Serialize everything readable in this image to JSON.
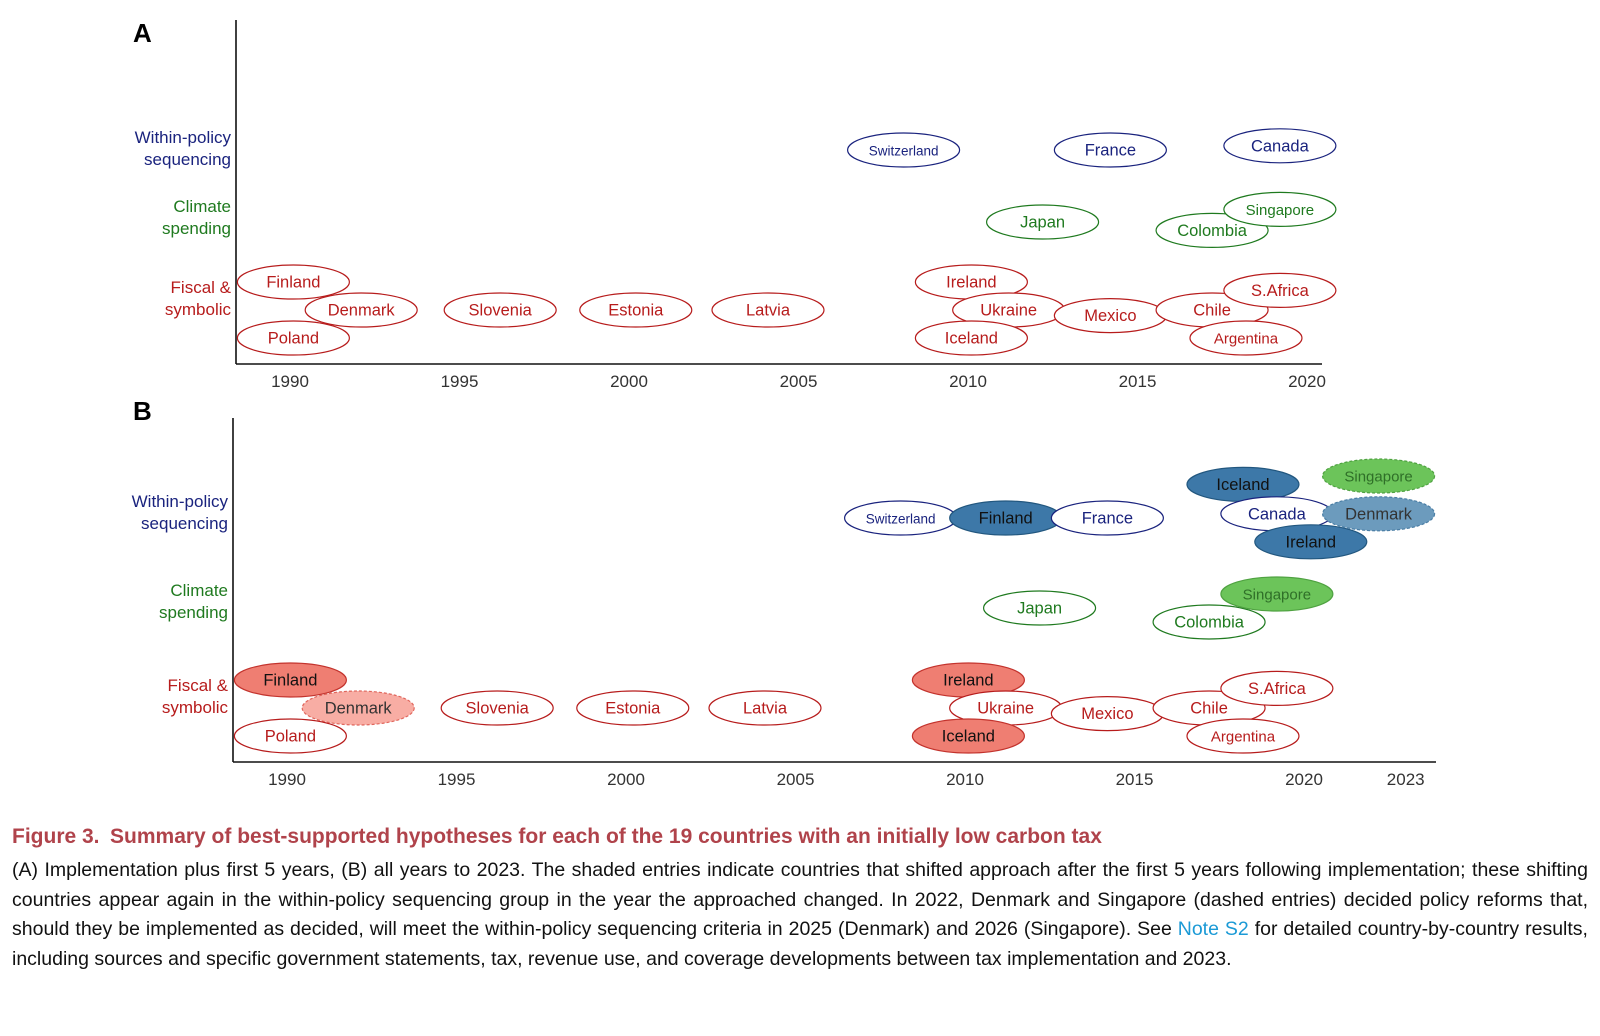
{
  "colors": {
    "sequencing": "#1a237e",
    "spending": "#1f7a1f",
    "fiscal": "#b71c1c",
    "caption_title": "#b0434b",
    "link": "#1b9ad6",
    "shade_blue": "#3d78a8",
    "shade_blue_dashed": "#6c9bbd",
    "shade_green": "#6cc45a",
    "shade_red": "#ef7e72",
    "shade_red_dashed": "#f8ada4"
  },
  "chart_data": [
    {
      "panel": "A",
      "type": "scatter",
      "title": "",
      "xlabel": "",
      "ylabel": "",
      "x_ticks": [
        "1990",
        "1995",
        "2000",
        "2005",
        "2010",
        "2015",
        "2020"
      ],
      "categories": [
        "Within-policy sequencing",
        "Climate spending",
        "Fiscal & symbolic"
      ],
      "category_lines": [
        [
          "Within-policy",
          "sequencing"
        ],
        [
          "Climate",
          "spending"
        ],
        [
          "Fiscal &",
          "symbolic"
        ]
      ],
      "points": [
        {
          "country": "Switzerland",
          "year": 2008.1,
          "group": "sequencing",
          "offset": 0,
          "style": "outline"
        },
        {
          "country": "France",
          "year": 2014.2,
          "group": "sequencing",
          "offset": 0,
          "style": "outline"
        },
        {
          "country": "Canada",
          "year": 2019.2,
          "group": "sequencing",
          "offset": 0.15,
          "style": "outline"
        },
        {
          "country": "Japan",
          "year": 2012.2,
          "group": "spending",
          "offset": 0,
          "style": "outline"
        },
        {
          "country": "Colombia",
          "year": 2017.2,
          "group": "spending",
          "offset": -0.3,
          "style": "outline"
        },
        {
          "country": "Singapore",
          "year": 2019.2,
          "group": "spending",
          "offset": 0.45,
          "style": "outline"
        },
        {
          "country": "Finland",
          "year": 1990.1,
          "group": "fiscal",
          "offset": 1,
          "style": "outline"
        },
        {
          "country": "Denmark",
          "year": 1992.1,
          "group": "fiscal",
          "offset": 0,
          "style": "outline"
        },
        {
          "country": "Poland",
          "year": 1990.1,
          "group": "fiscal",
          "offset": -1,
          "style": "outline"
        },
        {
          "country": "Slovenia",
          "year": 1996.2,
          "group": "fiscal",
          "offset": 0,
          "style": "outline"
        },
        {
          "country": "Estonia",
          "year": 2000.2,
          "group": "fiscal",
          "offset": 0,
          "style": "outline"
        },
        {
          "country": "Latvia",
          "year": 2004.1,
          "group": "fiscal",
          "offset": 0,
          "style": "outline"
        },
        {
          "country": "Ireland",
          "year": 2010.1,
          "group": "fiscal",
          "offset": 1,
          "style": "outline"
        },
        {
          "country": "Ukraine",
          "year": 2011.2,
          "group": "fiscal",
          "offset": 0,
          "style": "outline"
        },
        {
          "country": "Iceland",
          "year": 2010.1,
          "group": "fiscal",
          "offset": -1,
          "style": "outline"
        },
        {
          "country": "Mexico",
          "year": 2014.2,
          "group": "fiscal",
          "offset": -0.2,
          "style": "outline"
        },
        {
          "country": "Chile",
          "year": 2017.2,
          "group": "fiscal",
          "offset": 0,
          "style": "outline"
        },
        {
          "country": "S.Africa",
          "year": 2019.2,
          "group": "fiscal",
          "offset": 0.7,
          "style": "outline"
        },
        {
          "country": "Argentina",
          "year": 2018.2,
          "group": "fiscal",
          "offset": -1,
          "style": "outline"
        }
      ]
    },
    {
      "panel": "B",
      "type": "scatter",
      "title": "",
      "xlabel": "",
      "ylabel": "",
      "x_ticks": [
        "1990",
        "1995",
        "2000",
        "2005",
        "2010",
        "2015",
        "2020",
        "2023"
      ],
      "categories": [
        "Within-policy sequencing",
        "Climate spending",
        "Fiscal & symbolic"
      ],
      "category_lines": [
        [
          "Within-policy",
          "sequencing"
        ],
        [
          "Climate",
          "spending"
        ],
        [
          "Fiscal &",
          "symbolic"
        ]
      ],
      "points": [
        {
          "country": "Switzerland",
          "year": 2008.1,
          "group": "sequencing",
          "offset": 0,
          "style": "outline"
        },
        {
          "country": "Finland",
          "year": 2011.2,
          "group": "sequencing",
          "offset": 0,
          "style": "shaded"
        },
        {
          "country": "France",
          "year": 2014.2,
          "group": "sequencing",
          "offset": 0,
          "style": "outline"
        },
        {
          "country": "Iceland",
          "year": 2018.2,
          "group": "sequencing",
          "offset": 1.2,
          "style": "shaded"
        },
        {
          "country": "Canada",
          "year": 2019.2,
          "group": "sequencing",
          "offset": 0.15,
          "style": "outline"
        },
        {
          "country": "Ireland",
          "year": 2020.2,
          "group": "sequencing",
          "offset": -0.85,
          "style": "shaded"
        },
        {
          "country": "Singapore",
          "year": 2022.2,
          "group": "sequencing",
          "offset": 1.5,
          "style": "shaded-dashed",
          "shade": "green"
        },
        {
          "country": "Denmark",
          "year": 2022.2,
          "group": "sequencing",
          "offset": 0.15,
          "style": "shaded-dashed"
        },
        {
          "country": "Japan",
          "year": 2012.2,
          "group": "spending",
          "offset": 0,
          "style": "outline"
        },
        {
          "country": "Colombia",
          "year": 2017.2,
          "group": "spending",
          "offset": -0.5,
          "style": "outline"
        },
        {
          "country": "Singapore",
          "year": 2019.2,
          "group": "spending",
          "offset": 0.5,
          "style": "shaded"
        },
        {
          "country": "Finland",
          "year": 1990.1,
          "group": "fiscal",
          "offset": 1,
          "style": "shaded"
        },
        {
          "country": "Denmark",
          "year": 1992.1,
          "group": "fiscal",
          "offset": 0,
          "style": "shaded-dashed"
        },
        {
          "country": "Poland",
          "year": 1990.1,
          "group": "fiscal",
          "offset": -1,
          "style": "outline"
        },
        {
          "country": "Slovenia",
          "year": 1996.2,
          "group": "fiscal",
          "offset": 0,
          "style": "outline"
        },
        {
          "country": "Estonia",
          "year": 2000.2,
          "group": "fiscal",
          "offset": 0,
          "style": "outline"
        },
        {
          "country": "Latvia",
          "year": 2004.1,
          "group": "fiscal",
          "offset": 0,
          "style": "outline"
        },
        {
          "country": "Ireland",
          "year": 2010.1,
          "group": "fiscal",
          "offset": 1,
          "style": "shaded"
        },
        {
          "country": "Ukraine",
          "year": 2011.2,
          "group": "fiscal",
          "offset": 0,
          "style": "outline"
        },
        {
          "country": "Iceland",
          "year": 2010.1,
          "group": "fiscal",
          "offset": -1,
          "style": "shaded"
        },
        {
          "country": "Mexico",
          "year": 2014.2,
          "group": "fiscal",
          "offset": -0.2,
          "style": "outline"
        },
        {
          "country": "Chile",
          "year": 2017.2,
          "group": "fiscal",
          "offset": 0,
          "style": "outline"
        },
        {
          "country": "S.Africa",
          "year": 2019.2,
          "group": "fiscal",
          "offset": 0.7,
          "style": "outline"
        },
        {
          "country": "Argentina",
          "year": 2018.2,
          "group": "fiscal",
          "offset": -1,
          "style": "outline"
        }
      ]
    }
  ],
  "caption": {
    "title": "Figure 3. Summary of best-supported hypotheses for each of the 19 countries with an initially low carbon tax",
    "body_before_link": "(A) Implementation plus first 5 years, (B) all years to 2023. The shaded entries indicate countries that shifted approach after the first 5 years following implementation; these shifting countries appear again in the within-policy sequencing group in the year the approached changed. In 2022, Denmark and Singapore (dashed entries) decided policy reforms that, should they be implemented as decided, will meet the within-policy sequencing criteria in 2025 (Denmark) and 2026 (Singapore). See ",
    "link_text": "Note S2",
    "body_after_link": " for detailed country-by-country results, including sources and specific government statements, tax, revenue use, and coverage developments between tax implementation and 2023."
  }
}
